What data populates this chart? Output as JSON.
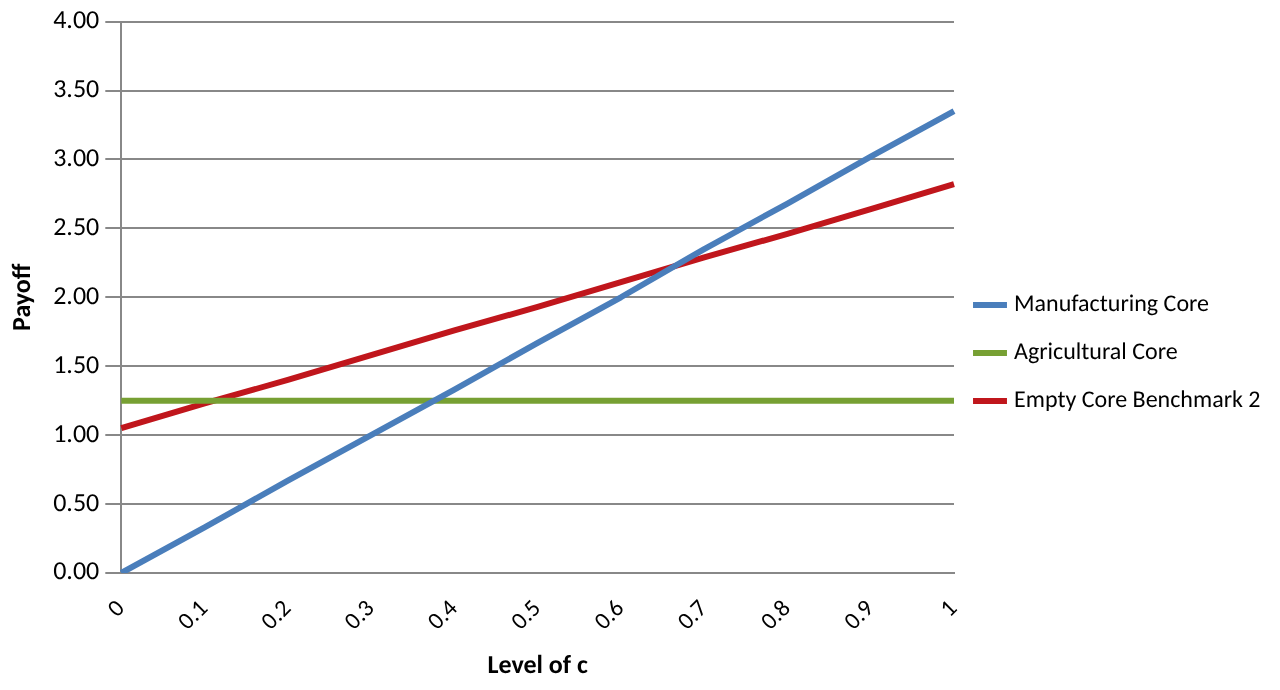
{
  "chart_data": {
    "type": "line",
    "xlabel": "Level of c",
    "ylabel": "Payoff",
    "categories": [
      "0",
      "0.1",
      "0.2",
      "0.3",
      "0.4",
      "0.5",
      "0.6",
      "0.7",
      "0.8",
      "0.9",
      "1"
    ],
    "series": [
      {
        "name": "Manufacturing Core",
        "color": "#4a7ebb",
        "values": [
          0,
          0.33,
          0.67,
          1.0,
          1.33,
          1.67,
          2.0,
          2.35,
          2.68,
          3.02,
          3.35
        ]
      },
      {
        "name": "Agricultural Core",
        "color": "#77a033",
        "values": [
          1.25,
          1.25,
          1.25,
          1.25,
          1.25,
          1.25,
          1.25,
          1.25,
          1.25,
          1.25,
          1.25
        ]
      },
      {
        "name": "Empty Core Benchmark 2",
        "color": "#c0161c",
        "values": [
          1.05,
          1.23,
          1.4,
          1.58,
          1.76,
          1.93,
          2.11,
          2.29,
          2.46,
          2.64,
          2.82
        ]
      }
    ],
    "ylim": [
      0,
      4
    ],
    "yticks": [
      {
        "value": 0,
        "label": "0.00"
      },
      {
        "value": 0.5,
        "label": "0.50"
      },
      {
        "value": 1,
        "label": "1.00"
      },
      {
        "value": 1.5,
        "label": "1.50"
      },
      {
        "value": 2,
        "label": "2.00"
      },
      {
        "value": 2.5,
        "label": "2.50"
      },
      {
        "value": 3,
        "label": "3.00"
      },
      {
        "value": 3.5,
        "label": "3.50"
      },
      {
        "value": 4,
        "label": "4.00"
      }
    ],
    "grid": "y",
    "legend": "right",
    "marker": "none",
    "line_style": "solid"
  }
}
